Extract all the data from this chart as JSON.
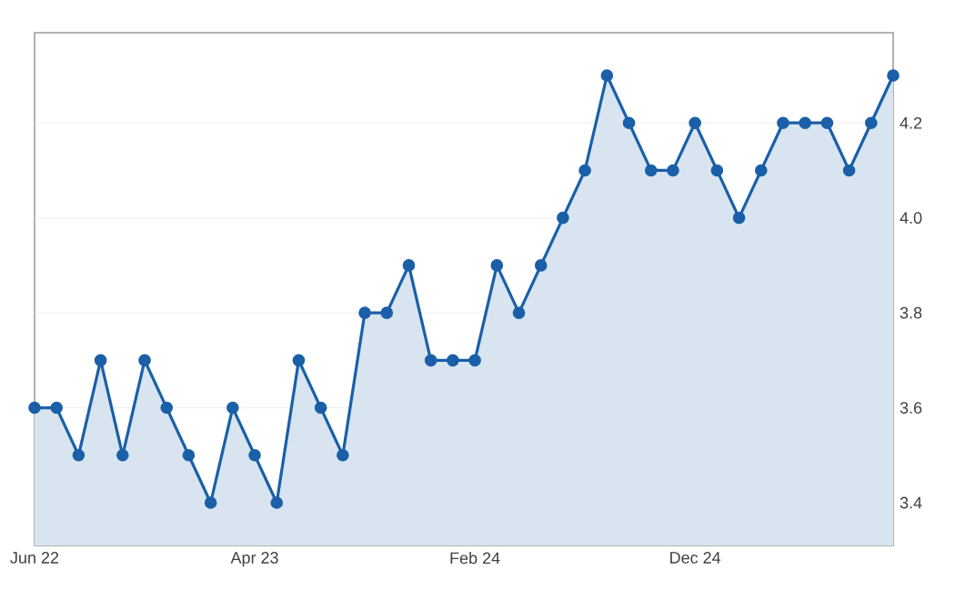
{
  "chart_data": {
    "type": "area",
    "x": [
      "2022-06",
      "2022-07",
      "2022-08",
      "2022-09",
      "2022-10",
      "2022-11",
      "2022-12",
      "2023-01",
      "2023-02",
      "2023-03",
      "2023-04",
      "2023-05",
      "2023-06",
      "2023-07",
      "2023-08",
      "2023-09",
      "2023-10",
      "2023-11",
      "2023-12",
      "2024-01",
      "2024-02",
      "2024-03",
      "2024-04",
      "2024-05",
      "2024-06",
      "2024-07",
      "2024-08",
      "2024-09",
      "2024-10",
      "2024-11",
      "2024-12",
      "2025-01",
      "2025-02",
      "2025-03",
      "2025-04",
      "2025-05",
      "2025-06",
      "2025-07",
      "2025-08",
      "2025-09"
    ],
    "values": [
      3.6,
      3.6,
      3.5,
      3.7,
      3.5,
      3.7,
      3.6,
      3.5,
      3.4,
      3.6,
      3.5,
      3.4,
      3.7,
      3.6,
      3.5,
      3.8,
      3.8,
      3.9,
      3.7,
      3.7,
      3.7,
      3.9,
      3.8,
      3.9,
      4.0,
      4.1,
      4.3,
      4.2,
      4.1,
      4.1,
      4.2,
      4.1,
      4.0,
      4.1,
      4.2,
      4.2,
      4.2,
      4.1,
      4.2,
      4.3
    ],
    "color": "#1a5fa8",
    "xlim": [
      "2022-06",
      "2025-09"
    ],
    "xticks": [
      {
        "value": "2022-06",
        "label": "Jun 22"
      },
      {
        "value": "2023-04",
        "label": "Apr 23"
      },
      {
        "value": "2024-02",
        "label": "Feb 24"
      },
      {
        "value": "2024-12",
        "label": "Dec 24"
      }
    ],
    "ylim": [
      3.31,
      4.39
    ],
    "yticks": [
      3.4,
      3.6,
      3.8,
      {
        "value": 4.0,
        "label": "4.0"
      },
      4.2
    ],
    "grid": "y",
    "marker": "circle",
    "line_style": "solid"
  }
}
